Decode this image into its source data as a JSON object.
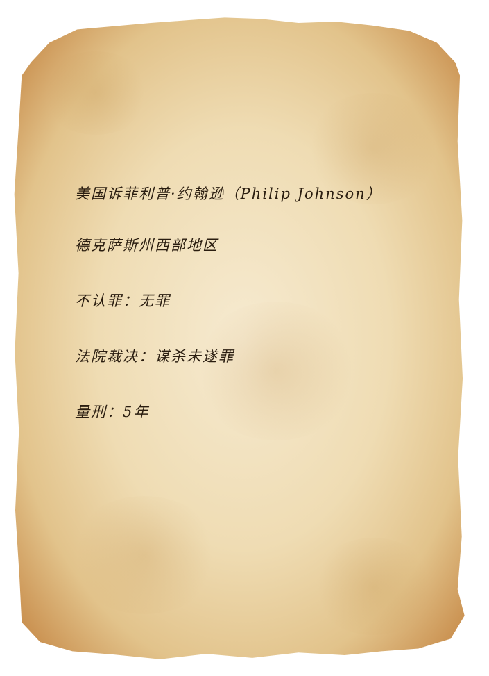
{
  "document": {
    "lines": [
      "美国诉菲利普·约翰逊（Philip Johnson）",
      "德克萨斯州西部地区",
      "不认罪：无罪",
      "法院裁决：谋杀未遂罪",
      "量刑：5年"
    ]
  },
  "colors": {
    "ink": "#2a1d10",
    "parchment_center": "#f6ead0",
    "parchment_edge": "#8a4f21"
  }
}
